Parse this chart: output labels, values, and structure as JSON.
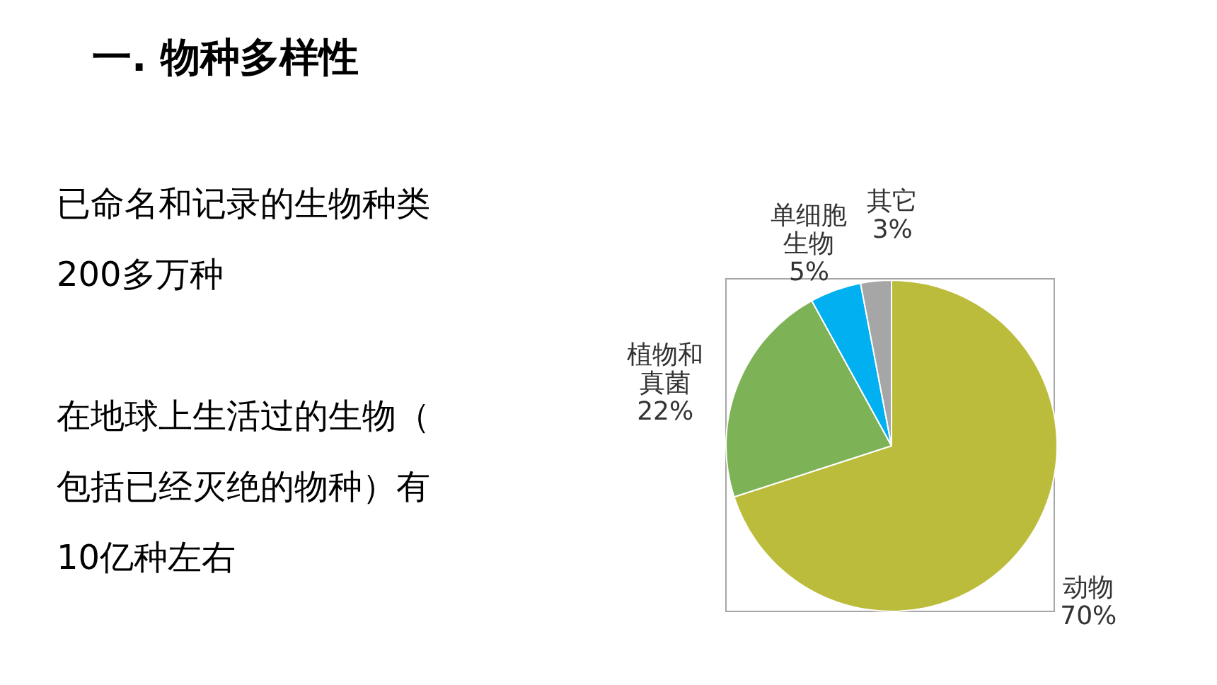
{
  "chart_data": {
    "type": "pie",
    "title": "一. 物种多样性",
    "categories": [
      "动物",
      "植物和真菌",
      "单细胞生物",
      "其它"
    ],
    "values": [
      70,
      22,
      5,
      3
    ],
    "value_labels": [
      "70%",
      "22%",
      "5%",
      "3%"
    ],
    "colors": [
      "#bcbc3c",
      "#7db356",
      "#00b0f0",
      "#a6a6a6"
    ],
    "annotations": [
      "已命名和记录的生物种类200多万种",
      "在地球上生活过的生物（包括已经灭绝的物种）有10亿种左右"
    ]
  }
}
